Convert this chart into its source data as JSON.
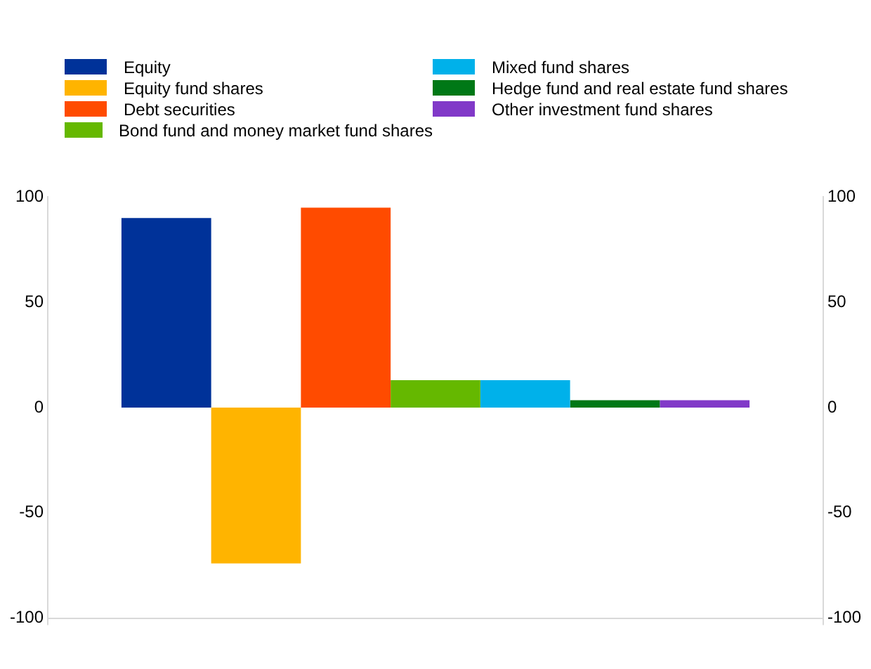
{
  "chart_data": {
    "type": "bar",
    "categories": [
      null
    ],
    "series": [
      {
        "name": "Equity",
        "color": "#003299",
        "values": [
          90
        ]
      },
      {
        "name": "Equity fund shares",
        "color": "#ffb400",
        "values": [
          -74
        ]
      },
      {
        "name": "Debt securities",
        "color": "#ff4b00",
        "values": [
          95
        ]
      },
      {
        "name": "Bond fund and money market fund shares",
        "color": "#65b800",
        "values": [
          13
        ]
      },
      {
        "name": "Mixed fund shares",
        "color": "#00b1ea",
        "values": [
          13
        ]
      },
      {
        "name": "Hedge fund and real estate fund shares",
        "color": "#007816",
        "values": [
          3.5
        ]
      },
      {
        "name": "Other investment fund shares",
        "color": "#8139c8",
        "values": [
          3.5
        ]
      }
    ],
    "ylim": [
      -100,
      100
    ],
    "yticks": [
      -100,
      -50,
      0,
      50,
      100
    ],
    "y2lim": [
      -100,
      100
    ],
    "y2ticks": [
      -100,
      -50,
      0,
      50,
      100
    ],
    "grid": false,
    "legend": "top"
  }
}
